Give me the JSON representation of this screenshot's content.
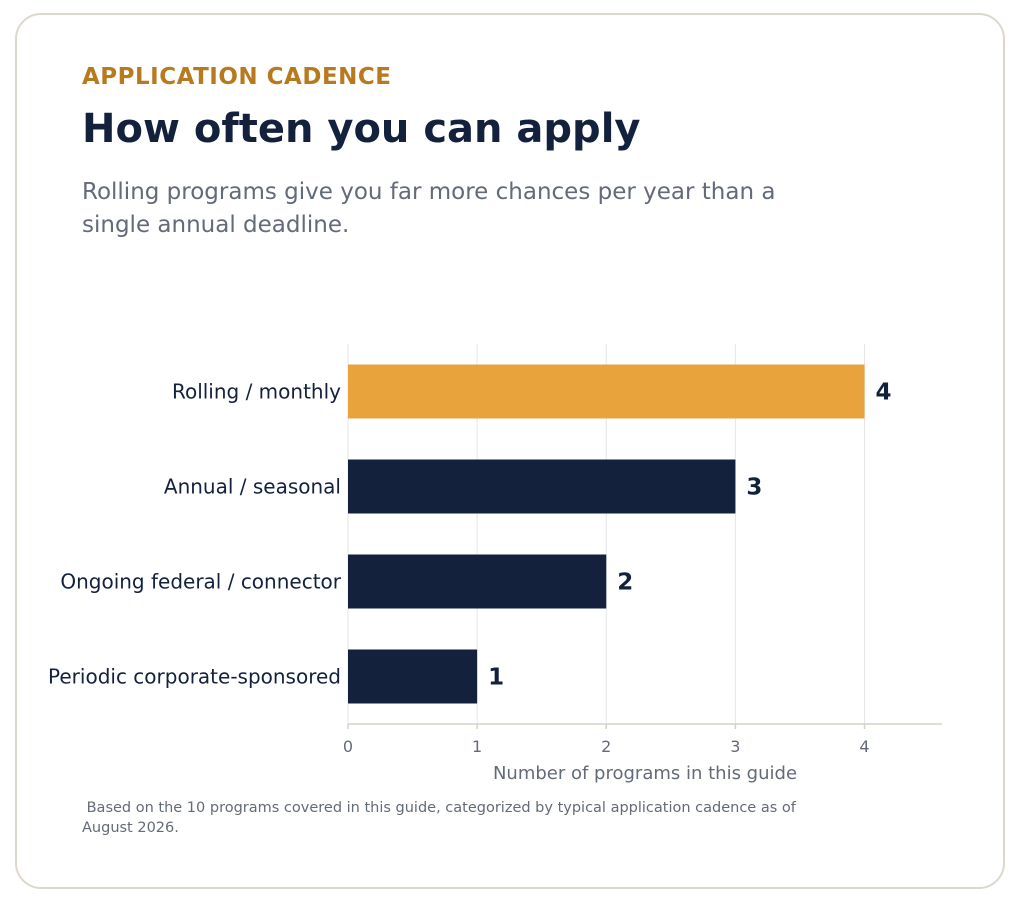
{
  "header": {
    "eyebrow": "APPLICATION CADENCE",
    "title": "How often you can apply",
    "subtitle": "Rolling programs give you far more chances per year than a single annual deadline."
  },
  "footnote": " Based on the 10 programs covered in this guide, categorized by typical application cadence as of August 2026.",
  "colors": {
    "highlight": "#e8a33d",
    "bar": "#14213d",
    "accent_text": "#b87a1f",
    "muted_text": "#636a78",
    "grid": "#e6e6e6",
    "axis": "#d7d2c4"
  },
  "chart_data": {
    "type": "bar",
    "orientation": "horizontal",
    "categories": [
      "Rolling / monthly",
      "Annual / seasonal",
      "Ongoing federal / connector",
      "Periodic corporate-sponsored"
    ],
    "values": [
      4,
      3,
      2,
      1
    ],
    "highlight_index": 0,
    "xlabel": "Number of programs in this guide",
    "ylabel": "",
    "xlim": [
      0,
      4.6
    ],
    "xticks": [
      0,
      1,
      2,
      3,
      4
    ],
    "grid": "vertical",
    "data_labels": true
  }
}
